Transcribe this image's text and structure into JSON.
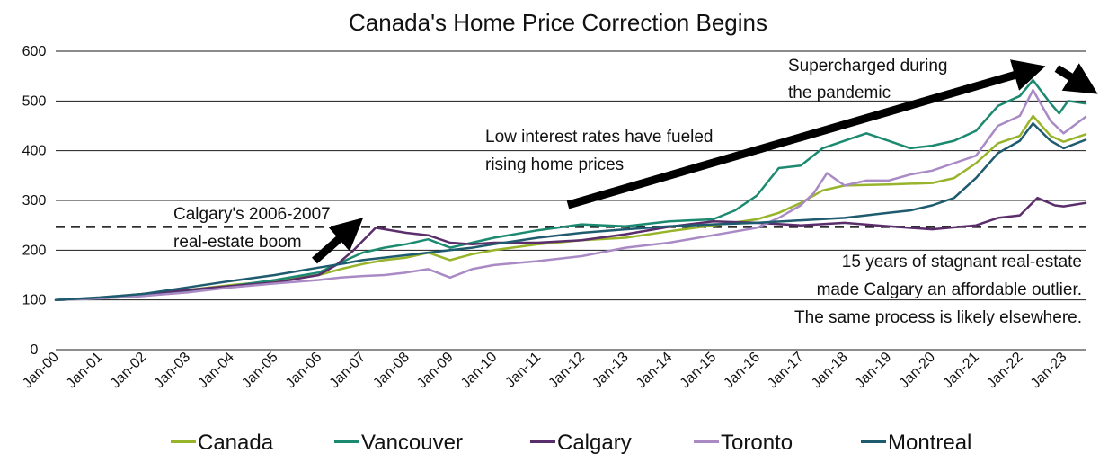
{
  "chart_data": {
    "type": "line",
    "title": "Canada's Home Price Correction Begins",
    "xlabel": "",
    "ylabel": "",
    "ylim": [
      0,
      600
    ],
    "y_ticks": [
      "0",
      "100",
      "200",
      "300",
      "400",
      "500",
      "600"
    ],
    "x_ticks": [
      "Jan-00",
      "Jan-01",
      "Jan-02",
      "Jan-03",
      "Jan-04",
      "Jan-05",
      "Jan-06",
      "Jan-07",
      "Jan-08",
      "Jan-09",
      "Jan-10",
      "Jan-11",
      "Jan-12",
      "Jan-13",
      "Jan-14",
      "Jan-15",
      "Jan-16",
      "Jan-17",
      "Jan-18",
      "Jan-19",
      "Jan-20",
      "Jan-21",
      "Jan-22",
      "Jan-23"
    ],
    "x_range": [
      2000.0,
      2023.5
    ],
    "grid": "horizontal",
    "legend_position": "bottom",
    "reference_line": {
      "y": 247,
      "style": "dashed"
    },
    "series": [
      {
        "name": "Canada",
        "color": "#97b42a",
        "x": [
          2000,
          2001,
          2002,
          2003,
          2004,
          2005,
          2006,
          2006.5,
          2007,
          2007.5,
          2008,
          2008.5,
          2009,
          2009.5,
          2010,
          2011,
          2012,
          2013,
          2014,
          2015,
          2016,
          2016.5,
          2017,
          2017.5,
          2018,
          2019,
          2020,
          2020.5,
          2021,
          2021.5,
          2022,
          2022.3,
          2022.7,
          2023,
          2023.5
        ],
        "values": [
          100,
          104,
          112,
          120,
          130,
          138,
          150,
          162,
          172,
          180,
          185,
          195,
          180,
          192,
          200,
          212,
          220,
          225,
          238,
          250,
          262,
          275,
          295,
          320,
          330,
          332,
          335,
          345,
          375,
          415,
          430,
          470,
          430,
          418,
          433
        ]
      },
      {
        "name": "Vancouver",
        "color": "#1b8a70",
        "x": [
          2000,
          2001,
          2002,
          2003,
          2004,
          2005,
          2006,
          2006.5,
          2007,
          2007.5,
          2008,
          2008.5,
          2009,
          2009.5,
          2010,
          2011,
          2012,
          2013,
          2014,
          2015,
          2015.5,
          2016,
          2016.5,
          2017,
          2017.5,
          2018,
          2018.5,
          2019,
          2019.5,
          2020,
          2020.5,
          2021,
          2021.5,
          2022,
          2022.3,
          2022.7,
          2022.9,
          2023.1,
          2023.5
        ],
        "values": [
          100,
          103,
          108,
          118,
          128,
          140,
          155,
          175,
          195,
          205,
          212,
          222,
          205,
          215,
          225,
          240,
          252,
          248,
          258,
          262,
          280,
          310,
          365,
          370,
          405,
          420,
          435,
          420,
          405,
          410,
          420,
          440,
          490,
          510,
          542,
          495,
          475,
          500,
          495
        ]
      },
      {
        "name": "Calgary",
        "color": "#5a2d6b",
        "x": [
          2000,
          2001,
          2002,
          2003,
          2004,
          2005,
          2006,
          2006.4,
          2006.8,
          2007.3,
          2008,
          2008.5,
          2009,
          2009.5,
          2010,
          2011,
          2012,
          2013,
          2014,
          2015,
          2016,
          2017,
          2018,
          2019,
          2020,
          2021,
          2021.5,
          2022,
          2022.4,
          2022.8,
          2023,
          2023.5
        ],
        "values": [
          100,
          104,
          112,
          120,
          128,
          135,
          150,
          170,
          200,
          245,
          235,
          230,
          215,
          212,
          215,
          215,
          220,
          232,
          247,
          258,
          255,
          250,
          255,
          248,
          242,
          250,
          265,
          270,
          305,
          290,
          288,
          295
        ]
      },
      {
        "name": "Toronto",
        "color": "#a98ac4",
        "x": [
          2000,
          2001,
          2002,
          2003,
          2004,
          2005,
          2006,
          2006.5,
          2007,
          2007.5,
          2008,
          2008.5,
          2009,
          2009.5,
          2010,
          2011,
          2012,
          2013,
          2014,
          2015,
          2016,
          2016.5,
          2017,
          2017.3,
          2017.6,
          2018,
          2018.5,
          2019,
          2019.5,
          2020,
          2020.5,
          2021,
          2021.5,
          2022,
          2022.3,
          2022.7,
          2023,
          2023.5
        ],
        "values": [
          100,
          103,
          108,
          115,
          125,
          133,
          140,
          145,
          148,
          150,
          155,
          162,
          145,
          162,
          170,
          178,
          188,
          205,
          215,
          230,
          245,
          265,
          290,
          315,
          355,
          330,
          340,
          340,
          352,
          360,
          375,
          390,
          450,
          470,
          522,
          460,
          435,
          468
        ]
      },
      {
        "name": "Montreal",
        "color": "#1f5b6e",
        "x": [
          2000,
          2001,
          2002,
          2003,
          2004,
          2005,
          2006,
          2006.5,
          2007,
          2007.5,
          2008,
          2008.5,
          2009,
          2009.5,
          2010,
          2011,
          2012,
          2013,
          2014,
          2015,
          2016,
          2017,
          2018,
          2019,
          2019.5,
          2020,
          2020.5,
          2021,
          2021.5,
          2022,
          2022.3,
          2022.7,
          2023,
          2023.5
        ],
        "values": [
          100,
          105,
          112,
          125,
          138,
          150,
          165,
          172,
          180,
          185,
          190,
          195,
          200,
          205,
          212,
          225,
          235,
          242,
          248,
          252,
          255,
          260,
          265,
          275,
          280,
          290,
          305,
          345,
          395,
          420,
          455,
          420,
          405,
          422
        ]
      }
    ],
    "annotations": [
      {
        "lines": [
          "Supercharged during",
          "the pandemic"
        ]
      },
      {
        "lines": [
          "Low interest rates have fueled",
          "rising home prices"
        ]
      },
      {
        "lines": [
          "Calgary's 2006-2007",
          "real-estate boom"
        ]
      },
      {
        "lines": [
          "15 years of stagnant real-estate",
          "made Calgary an affordable outlier.",
          "The same process is likely elsewhere."
        ]
      }
    ]
  }
}
